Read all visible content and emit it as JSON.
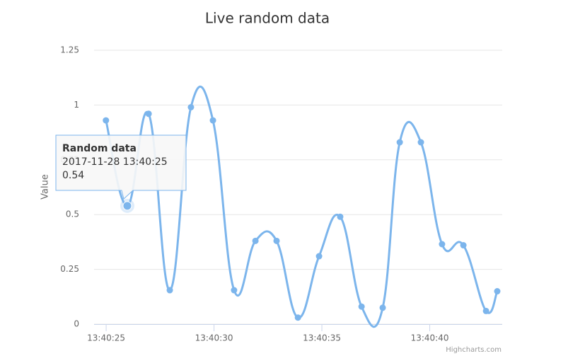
{
  "chart_data": {
    "type": "spline",
    "title": "Live random data",
    "y_axis_label": "Value",
    "series": [
      {
        "name": "Random data",
        "color": "#7cb5ec",
        "x": [
          "13:40:24.99",
          "13:40:25.98",
          "13:40:26.97",
          "13:40:27.95",
          "13:40:28.93",
          "13:40:29.95",
          "13:40:30.93",
          "13:40:31.92",
          "13:40:32.90",
          "13:40:33.89",
          "13:40:34.87",
          "13:40:35.85",
          "13:40:36.84",
          "13:40:37.82",
          "13:40:38.61",
          "13:40:39.59",
          "13:40:40.57",
          "13:40:41.56",
          "13:40:42.61",
          "13:40:43.13"
        ],
        "values": [
          0.93,
          0.54,
          0.96,
          0.155,
          0.99,
          0.93,
          0.155,
          0.38,
          0.38,
          0.03,
          0.31,
          0.49,
          0.08,
          0.075,
          0.83,
          0.83,
          0.365,
          0.36,
          0.06,
          0.15
        ]
      }
    ],
    "xlim": [
      "13:40:24.44",
      "13:40:43.36"
    ],
    "xticks": [
      "13:40:25",
      "13:40:30",
      "13:40:35",
      "13:40:40"
    ],
    "ylim": [
      0,
      1.25
    ],
    "yticks": [
      0,
      0.25,
      0.5,
      0.75,
      1,
      1.25
    ],
    "grid": true,
    "tooltip": {
      "header": "2017-11-28 13:40:25"
    },
    "credits": "Highcharts.com"
  }
}
